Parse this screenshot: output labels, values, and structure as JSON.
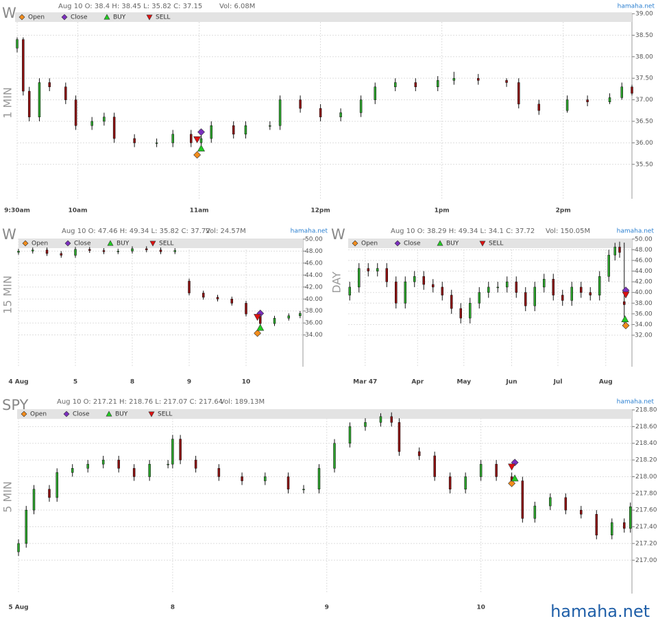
{
  "chart_data": [
    {
      "type": "candlestick",
      "title": "W",
      "info": "Aug 10 O: 38.4 H: 38.45 L: 35.82 C: 37.15",
      "volume": "Vol: 6.08M",
      "source": "hamaha.net",
      "ylabel": "1 MIN",
      "up_color": "#2ca02c",
      "down_color": "#8b1010",
      "grid": true,
      "x": [
        0,
        3,
        6,
        11,
        16,
        24,
        29,
        37,
        43,
        48,
        58,
        69,
        77,
        86,
        91,
        96,
        107,
        113,
        125,
        130,
        140,
        150,
        160,
        170,
        177,
        187,
        197,
        208,
        216,
        228,
        242,
        248,
        258,
        272,
        282,
        293,
        299,
        304
      ],
      "open": [
        38.2,
        38.4,
        37.2,
        36.6,
        37.4,
        37.3,
        37.0,
        36.4,
        36.5,
        36.6,
        36.1,
        36.0,
        36.0,
        36.2,
        36.0,
        36.1,
        36.4,
        36.2,
        36.4,
        36.4,
        37.0,
        36.8,
        36.6,
        36.7,
        37.0,
        37.3,
        37.4,
        37.3,
        37.45,
        37.5,
        37.45,
        37.4,
        36.9,
        36.75,
        37.0,
        36.95,
        37.05,
        37.3
      ],
      "high": [
        38.45,
        38.45,
        37.3,
        37.5,
        37.5,
        37.4,
        37.1,
        36.6,
        36.7,
        36.7,
        36.2,
        36.1,
        36.3,
        36.3,
        36.2,
        36.5,
        36.5,
        36.5,
        36.5,
        37.1,
        37.1,
        36.9,
        36.8,
        37.1,
        37.4,
        37.5,
        37.5,
        37.55,
        37.65,
        37.6,
        37.5,
        37.5,
        37.0,
        37.1,
        37.1,
        37.15,
        37.4,
        37.35
      ],
      "low": [
        38.1,
        37.1,
        36.5,
        36.5,
        37.2,
        36.9,
        36.3,
        36.3,
        36.4,
        36.0,
        35.9,
        35.9,
        35.9,
        35.9,
        35.82,
        36.0,
        36.1,
        36.1,
        36.3,
        36.3,
        36.7,
        36.5,
        36.5,
        36.6,
        36.9,
        37.2,
        37.2,
        37.2,
        37.35,
        37.35,
        37.3,
        36.8,
        36.65,
        36.7,
        36.85,
        36.9,
        37.0,
        37.1
      ],
      "close": [
        38.4,
        37.2,
        36.6,
        37.4,
        37.3,
        37.0,
        36.4,
        36.5,
        36.6,
        36.1,
        36.0,
        36.0,
        36.2,
        36.0,
        36.1,
        36.4,
        36.2,
        36.4,
        36.4,
        37.0,
        36.8,
        36.6,
        36.7,
        37.0,
        37.3,
        37.4,
        37.3,
        37.45,
        37.5,
        37.45,
        37.4,
        36.9,
        36.75,
        37.0,
        36.95,
        37.05,
        37.3,
        37.15
      ],
      "markers": [
        {
          "name": "Open",
          "marker": "diamond",
          "color": "#f28c1c",
          "x": 89,
          "y": 35.72
        },
        {
          "name": "Close",
          "marker": "diamond",
          "color": "#7b2fbe",
          "x": 91,
          "y": 36.25
        },
        {
          "name": "BUY",
          "marker": "triangle-up",
          "color": "#22cc22",
          "x": 91,
          "y": 35.87
        },
        {
          "name": "SELL",
          "marker": "triangle-down",
          "color": "#dd1111",
          "x": 89,
          "y": 36.08
        }
      ],
      "xlim": [
        0,
        304
      ],
      "ylim": [
        34.7,
        39.0
      ],
      "xticks": [
        {
          "value": 0,
          "label": "9:30am"
        },
        {
          "value": 30,
          "label": "10am"
        },
        {
          "value": 90,
          "label": "11am"
        },
        {
          "value": 150,
          "label": "12pm"
        },
        {
          "value": 210,
          "label": "1pm"
        },
        {
          "value": 270,
          "label": "2pm"
        }
      ],
      "yticks": [
        {
          "value": 35.5,
          "label": "35.50"
        },
        {
          "value": 36,
          "label": "36.00"
        },
        {
          "value": 36.5,
          "label": "36.50"
        },
        {
          "value": 37,
          "label": "37.00"
        },
        {
          "value": 37.5,
          "label": "37.50"
        },
        {
          "value": 38,
          "label": "38.00"
        },
        {
          "value": 38.5,
          "label": "38.50"
        },
        {
          "value": 39,
          "label": "39.00"
        }
      ]
    },
    {
      "type": "candlestick",
      "title": "W",
      "info": "Aug 10 O: 47.46 H: 49.34 L: 35.82 C: 37.72",
      "volume": "Vol: 24.57M",
      "source": "hamaha.net",
      "ylabel": "15 MIN",
      "up_color": "#2ca02c",
      "down_color": "#8b1010",
      "grid": true,
      "x": [
        0,
        0.25,
        0.5,
        0.75,
        1,
        1.25,
        1.5,
        1.75,
        2,
        2.25,
        2.5,
        2.75,
        3,
        3.25,
        3.5,
        3.75,
        4,
        4.25,
        4.5,
        4.75,
        4.95
      ],
      "open": [
        47.8,
        48.0,
        48.2,
        47.6,
        47.3,
        48.3,
        48.1,
        47.9,
        48.0,
        48.4,
        48.2,
        47.9,
        43.0,
        41.0,
        40.3,
        40.0,
        39.3,
        37.5,
        35.9,
        36.8,
        37.2
      ],
      "high": [
        48.4,
        48.6,
        48.6,
        48.0,
        48.7,
        48.7,
        48.5,
        48.4,
        48.8,
        48.8,
        48.6,
        48.5,
        43.4,
        41.4,
        40.7,
        40.4,
        39.7,
        37.9,
        37.2,
        37.6,
        38.0
      ],
      "low": [
        47.4,
        47.6,
        47.2,
        46.9,
        46.9,
        47.7,
        47.5,
        47.5,
        47.6,
        47.8,
        47.5,
        47.5,
        40.6,
        39.9,
        39.6,
        38.9,
        37.1,
        35.5,
        35.5,
        36.4,
        36.8
      ],
      "close": [
        48.0,
        48.2,
        47.6,
        47.3,
        48.3,
        48.1,
        47.9,
        48.0,
        48.4,
        48.2,
        47.9,
        48.1,
        41.0,
        40.3,
        40.0,
        39.3,
        37.5,
        35.9,
        36.8,
        37.2,
        37.6
      ],
      "markers": [
        {
          "name": "Open",
          "marker": "diamond",
          "color": "#f28c1c",
          "x": 4.2,
          "y": 34.3
        },
        {
          "name": "Close",
          "marker": "diamond",
          "color": "#7b2fbe",
          "x": 4.25,
          "y": 37.6
        },
        {
          "name": "BUY",
          "marker": "triangle-up",
          "color": "#22cc22",
          "x": 4.25,
          "y": 35.2
        },
        {
          "name": "SELL",
          "marker": "triangle-down",
          "color": "#dd1111",
          "x": 4.2,
          "y": 37.0
        }
      ],
      "xlim": [
        0,
        5.0
      ],
      "ylim": [
        28.7,
        50.1
      ],
      "xticks": [
        {
          "value": 0,
          "label": "4 Aug"
        },
        {
          "value": 1,
          "label": "5"
        },
        {
          "value": 2,
          "label": "8"
        },
        {
          "value": 3,
          "label": "9"
        },
        {
          "value": 4,
          "label": "10"
        }
      ],
      "yticks": [
        {
          "value": 34,
          "label": "34.00"
        },
        {
          "value": 36,
          "label": "36.00"
        },
        {
          "value": 38,
          "label": "38.00"
        },
        {
          "value": 40,
          "label": "40.00"
        },
        {
          "value": 42,
          "label": "42.00"
        },
        {
          "value": 44,
          "label": "44.00"
        },
        {
          "value": 46,
          "label": "46.00"
        },
        {
          "value": 48,
          "label": "48.00"
        },
        {
          "value": 50,
          "label": "50.00"
        }
      ]
    },
    {
      "type": "candlestick",
      "title": "W",
      "info": "Aug 10 O: 38.29 H: 49.34 L: 34.1 C: 37.72",
      "volume": "Vol: 150.05M",
      "source": "hamaha.net",
      "ylabel": "DAY",
      "up_color": "#2ca02c",
      "down_color": "#8b1010",
      "grid": true,
      "x": [
        47,
        53,
        59,
        65,
        71,
        77,
        83,
        89,
        95,
        101,
        107,
        113,
        119,
        125,
        131,
        137,
        143,
        149,
        155,
        161,
        167,
        173,
        179,
        185,
        191,
        197,
        203,
        209,
        215,
        219,
        222,
        225
      ],
      "open": [
        39.5,
        41.0,
        44.5,
        44.0,
        44.5,
        42.0,
        38.0,
        42.0,
        43.0,
        41.5,
        41.0,
        39.5,
        37.0,
        35.2,
        38.0,
        40.0,
        41.0,
        41.0,
        42.0,
        40.0,
        37.5,
        41.0,
        42.5,
        39.5,
        38.5,
        41.0,
        40.0,
        39.5,
        43.0,
        47.0,
        48.5,
        38.29
      ],
      "high": [
        42.0,
        45.5,
        45.5,
        45.5,
        45.5,
        43.0,
        43.0,
        44.0,
        44.0,
        42.5,
        42.0,
        40.5,
        38.0,
        39.0,
        41.0,
        42.0,
        42.0,
        43.0,
        43.0,
        41.0,
        42.0,
        43.5,
        43.5,
        40.5,
        42.0,
        42.0,
        41.0,
        44.0,
        48.0,
        49.3,
        49.5,
        49.34
      ],
      "low": [
        38.5,
        40.0,
        43.0,
        43.0,
        41.0,
        37.0,
        37.0,
        41.0,
        40.5,
        40.0,
        38.5,
        36.0,
        34.2,
        34.2,
        37.0,
        39.0,
        40.0,
        40.0,
        39.0,
        36.5,
        36.5,
        40.0,
        38.5,
        37.5,
        37.5,
        39.0,
        38.5,
        38.5,
        42.0,
        46.0,
        46.5,
        34.1
      ],
      "close": [
        41.0,
        44.5,
        44.0,
        44.5,
        42.0,
        38.0,
        42.0,
        43.0,
        41.5,
        41.0,
        39.5,
        37.0,
        35.2,
        38.0,
        40.0,
        41.0,
        41.0,
        42.0,
        40.0,
        37.5,
        41.0,
        42.5,
        39.5,
        38.5,
        41.0,
        40.0,
        39.5,
        43.0,
        47.0,
        48.5,
        47.5,
        37.72
      ],
      "markers": [
        {
          "name": "Open",
          "marker": "diamond",
          "color": "#f28c1c",
          "x": 226,
          "y": 33.8
        },
        {
          "name": "Close",
          "marker": "diamond",
          "color": "#7b2fbe",
          "x": 226,
          "y": 40.4
        },
        {
          "name": "BUY",
          "marker": "triangle-up",
          "color": "#22cc22",
          "x": 225.5,
          "y": 35.0
        },
        {
          "name": "SELL",
          "marker": "triangle-down",
          "color": "#dd1111",
          "x": 226,
          "y": 39.6
        }
      ],
      "xlim": [
        46,
        230
      ],
      "ylim": [
        26.1,
        50.1
      ],
      "xticks": [
        {
          "value": 57,
          "label": "Mar 47"
        },
        {
          "value": 91,
          "label": "Apr"
        },
        {
          "value": 121,
          "label": "May"
        },
        {
          "value": 152,
          "label": "Jun"
        },
        {
          "value": 182,
          "label": "Jul"
        },
        {
          "value": 213,
          "label": "Aug"
        }
      ],
      "yticks": [
        {
          "value": 32,
          "label": "32.00"
        },
        {
          "value": 34,
          "label": "34.00"
        },
        {
          "value": 36,
          "label": "36.00"
        },
        {
          "value": 38,
          "label": "38.00"
        },
        {
          "value": 40,
          "label": "40.00"
        },
        {
          "value": 42,
          "label": "42.00"
        },
        {
          "value": 44,
          "label": "44.00"
        },
        {
          "value": 46,
          "label": "46.00"
        },
        {
          "value": 48,
          "label": "48.00"
        },
        {
          "value": 50,
          "label": "50.00"
        }
      ]
    },
    {
      "type": "candlestick",
      "title": "SPY",
      "info": "Aug 10 O: 217.21 H: 218.76 L: 217.07 C: 217.64",
      "volume": "Vol: 189.13M",
      "source": "hamaha.net",
      "ylabel": "5 MIN",
      "up_color": "#2ca02c",
      "down_color": "#8b1010",
      "grid": true,
      "x": [
        0,
        0.05,
        0.1,
        0.2,
        0.25,
        0.35,
        0.45,
        0.55,
        0.65,
        0.75,
        0.85,
        0.97,
        1.0,
        1.05,
        1.15,
        1.3,
        1.45,
        1.6,
        1.75,
        1.85,
        1.95,
        2.05,
        2.15,
        2.25,
        2.35,
        2.42,
        2.47,
        2.6,
        2.7,
        2.8,
        2.9,
        3.0,
        3.1,
        3.2,
        3.27,
        3.35,
        3.45,
        3.55,
        3.65,
        3.75,
        3.85,
        3.93,
        3.97
      ],
      "open": [
        217.1,
        217.2,
        217.6,
        217.85,
        217.75,
        218.05,
        218.1,
        218.15,
        218.2,
        218.1,
        218.0,
        218.15,
        218.15,
        218.45,
        218.2,
        218.1,
        218.0,
        217.95,
        218.0,
        217.85,
        217.85,
        218.1,
        218.4,
        218.6,
        218.65,
        218.72,
        218.65,
        218.3,
        218.25,
        218.0,
        217.85,
        218.0,
        218.15,
        218.0,
        217.95,
        217.5,
        217.65,
        217.75,
        217.6,
        217.55,
        217.3,
        217.45,
        217.38
      ],
      "high": [
        217.25,
        217.65,
        217.9,
        217.9,
        218.1,
        218.15,
        218.2,
        218.25,
        218.25,
        218.15,
        218.2,
        218.2,
        218.5,
        218.5,
        218.25,
        218.15,
        218.05,
        218.05,
        218.05,
        217.9,
        218.15,
        218.45,
        218.65,
        218.7,
        218.76,
        218.77,
        218.7,
        218.35,
        218.3,
        218.05,
        218.05,
        218.2,
        218.2,
        218.05,
        218.0,
        217.7,
        217.8,
        217.8,
        217.65,
        217.6,
        217.5,
        217.5,
        217.69
      ],
      "low": [
        217.05,
        217.15,
        217.55,
        217.7,
        217.7,
        218.0,
        218.05,
        218.1,
        218.05,
        217.95,
        217.95,
        218.1,
        218.1,
        218.15,
        218.05,
        217.95,
        217.9,
        217.9,
        217.8,
        217.8,
        217.8,
        218.05,
        218.35,
        218.55,
        218.6,
        218.6,
        218.25,
        218.2,
        217.95,
        217.8,
        217.8,
        217.95,
        217.95,
        217.9,
        217.45,
        217.45,
        217.6,
        217.55,
        217.5,
        217.25,
        217.25,
        217.33,
        217.33
      ],
      "close": [
        217.2,
        217.6,
        217.85,
        217.75,
        218.05,
        218.1,
        218.15,
        218.2,
        218.1,
        218.0,
        218.15,
        218.15,
        218.45,
        218.2,
        218.1,
        218.0,
        217.95,
        218.0,
        217.85,
        217.85,
        218.1,
        218.4,
        218.6,
        218.65,
        218.72,
        218.65,
        218.3,
        218.25,
        218.0,
        217.85,
        218.0,
        218.15,
        218.0,
        217.95,
        217.5,
        217.65,
        217.75,
        217.6,
        217.55,
        217.3,
        217.45,
        217.38,
        217.64
      ],
      "markers": [
        {
          "name": "Open",
          "marker": "diamond",
          "color": "#f28c1c",
          "x": 3.2,
          "y": 217.92
        },
        {
          "name": "Close",
          "marker": "diamond",
          "color": "#7b2fbe",
          "x": 3.22,
          "y": 218.17
        },
        {
          "name": "BUY",
          "marker": "triangle-up",
          "color": "#22cc22",
          "x": 3.22,
          "y": 217.98
        },
        {
          "name": "SELL",
          "marker": "triangle-down",
          "color": "#dd1111",
          "x": 3.2,
          "y": 218.12
        }
      ],
      "xlim": [
        0,
        3.98
      ],
      "ylim": [
        216.6,
        218.8
      ],
      "xticks": [
        {
          "value": 0,
          "label": "5 Aug"
        },
        {
          "value": 1,
          "label": "8"
        },
        {
          "value": 2,
          "label": "9"
        },
        {
          "value": 3,
          "label": "10"
        }
      ],
      "yticks": [
        {
          "value": 217,
          "label": "217.00"
        },
        {
          "value": 217.2,
          "label": "217.20"
        },
        {
          "value": 217.4,
          "label": "217.40"
        },
        {
          "value": 217.6,
          "label": "217.60"
        },
        {
          "value": 217.8,
          "label": "217.80"
        },
        {
          "value": 218,
          "label": "218.00"
        },
        {
          "value": 218.2,
          "label": "218.20"
        },
        {
          "value": 218.4,
          "label": "218.40"
        },
        {
          "value": 218.6,
          "label": "218.60"
        },
        {
          "value": 218.8,
          "label": "218.80"
        }
      ]
    }
  ],
  "footer": "hamaha.net"
}
